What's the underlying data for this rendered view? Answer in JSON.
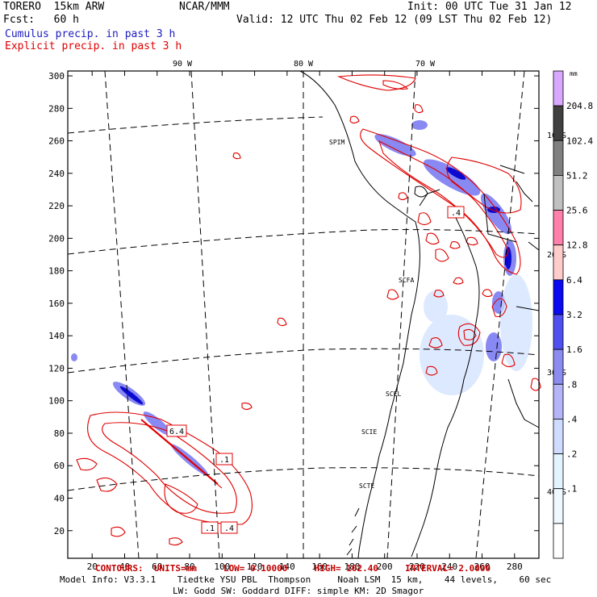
{
  "header": {
    "model": "TORERO  15km ARW",
    "forecast": "Fcst:   60 h",
    "org": "NCAR/MMM",
    "init": "Init: 00 UTC Tue 31 Jan 12",
    "valid": "Valid: 12 UTC Thu 02 Feb 12 (09 LST Thu 02 Feb 12)",
    "field1": "Cumulus precip. in past 3 h",
    "field2": "Explicit precip. in past 3 h"
  },
  "colors": {
    "cumulus": "#1a1adc",
    "explicit": "#e00000",
    "frame": "#000000"
  },
  "map": {
    "grid_x_ticks": [
      20,
      40,
      60,
      80,
      100,
      120,
      140,
      160,
      180,
      200,
      220,
      240,
      260,
      280
    ],
    "grid_y_ticks": [
      20,
      40,
      60,
      80,
      100,
      120,
      140,
      160,
      180,
      200,
      220,
      240,
      260,
      280,
      300
    ],
    "grid_x_range": [
      5,
      295
    ],
    "grid_y_range": [
      3,
      303
    ],
    "lon_labels": [
      "90 W",
      "80 W",
      "70 W"
    ],
    "lat_labels": [
      "10 S",
      "20 S",
      "30 S",
      "40 S"
    ],
    "stations": [
      "SPIM",
      "SCFA",
      "SCEL",
      "SCIE",
      "SCTE"
    ],
    "contour_labels": [
      "6.4",
      ".1",
      ".1",
      ".4",
      ".4"
    ]
  },
  "colorbar": {
    "unit": "mm",
    "levels": [
      "204.8",
      "102.4",
      "51.2",
      "25.6",
      "12.8",
      "6.4",
      "3.2",
      "1.6",
      ".8",
      ".4",
      ".2",
      ".1"
    ],
    "colors": [
      "#d8a8ff",
      "#404040",
      "#808080",
      "#c0c0c0",
      "#ff80aa",
      "#ffcccc",
      "#0a0af0",
      "#5050f0",
      "#8c8cf0",
      "#b4b4f8",
      "#d0dcff",
      "#e4f4ff",
      "#eef8ff",
      "#ffffff"
    ]
  },
  "footer": {
    "contours": "CONTOURS:  UNITS=mm     LOW= 0.10000     HIGH= 102.40     INTERVAL= 2.0000",
    "line1": "Model Info: V3.3.1    Tiedtke YSU PBL  Thompson     Noah LSM  15 km,    44 levels,    60 sec",
    "line2": "LW: Godd SW: Goddard DIFF: simple KM: 2D Smagor"
  }
}
